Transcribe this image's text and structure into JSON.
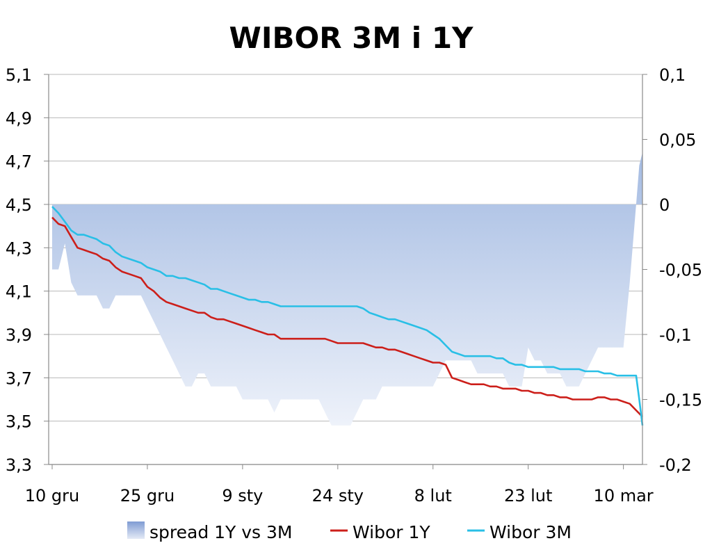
{
  "chart_data": {
    "type": "line",
    "title": "WIBOR 3M i 1Y",
    "x_labels": [
      "10 gru",
      "25 gru",
      "9 sty",
      "24 sty",
      "8 lut",
      "23 lut",
      "10 mar"
    ],
    "x_tick_days": [
      0,
      15,
      30,
      45,
      60,
      75,
      90
    ],
    "x_range_days": [
      0,
      93
    ],
    "y_left": {
      "min": 3.3,
      "max": 5.1,
      "ticks": [
        "5,1",
        "4,9",
        "4,7",
        "4,5",
        "4,3",
        "4,1",
        "3,9",
        "3,7",
        "3,5",
        "3,3"
      ]
    },
    "y_right": {
      "min": -0.2,
      "max": 0.1,
      "ticks": [
        "0,1",
        "0,05",
        "0",
        "-0,05",
        "-0,1",
        "-0,15",
        "-0,2"
      ]
    },
    "gridlines": "horizontal",
    "legend_position": "bottom",
    "series": [
      {
        "name": "spread 1Y vs 3M",
        "style": "area",
        "axis": "right",
        "color": "#8eaadb",
        "x": [
          0,
          1,
          2,
          3,
          4,
          5,
          6,
          7,
          8,
          9,
          10,
          11,
          12,
          13,
          14,
          15,
          16,
          17,
          18,
          19,
          20,
          21,
          22,
          23,
          24,
          25,
          26,
          27,
          28,
          29,
          30,
          31,
          32,
          33,
          34,
          35,
          36,
          37,
          38,
          39,
          40,
          41,
          42,
          43,
          44,
          45,
          46,
          47,
          48,
          49,
          50,
          51,
          52,
          53,
          54,
          55,
          56,
          57,
          58,
          59,
          60,
          61,
          62,
          63,
          64,
          65,
          66,
          67,
          68,
          69,
          70,
          71,
          72,
          73,
          74,
          75,
          76,
          77,
          78,
          79,
          80,
          81,
          82,
          83,
          84,
          85,
          86,
          87,
          88,
          89,
          90,
          91,
          92,
          92.5,
          93
        ],
        "values": [
          -0.05,
          -0.05,
          -0.03,
          -0.06,
          -0.07,
          -0.07,
          -0.07,
          -0.07,
          -0.08,
          -0.08,
          -0.07,
          -0.07,
          -0.07,
          -0.07,
          -0.07,
          -0.08,
          -0.09,
          -0.1,
          -0.11,
          -0.12,
          -0.13,
          -0.14,
          -0.14,
          -0.13,
          -0.13,
          -0.14,
          -0.14,
          -0.14,
          -0.14,
          -0.14,
          -0.15,
          -0.15,
          -0.15,
          -0.15,
          -0.15,
          -0.16,
          -0.15,
          -0.15,
          -0.15,
          -0.15,
          -0.15,
          -0.15,
          -0.15,
          -0.16,
          -0.17,
          -0.17,
          -0.17,
          -0.17,
          -0.16,
          -0.15,
          -0.15,
          -0.15,
          -0.14,
          -0.14,
          -0.14,
          -0.14,
          -0.14,
          -0.14,
          -0.14,
          -0.14,
          -0.14,
          -0.13,
          -0.12,
          -0.12,
          -0.12,
          -0.12,
          -0.12,
          -0.13,
          -0.13,
          -0.13,
          -0.13,
          -0.13,
          -0.14,
          -0.14,
          -0.14,
          -0.11,
          -0.12,
          -0.12,
          -0.13,
          -0.13,
          -0.13,
          -0.14,
          -0.14,
          -0.14,
          -0.13,
          -0.12,
          -0.11,
          -0.11,
          -0.11,
          -0.11,
          -0.11,
          -0.06,
          0.0,
          0.03,
          0.04
        ]
      },
      {
        "name": "Wibor 1Y",
        "style": "line",
        "axis": "left",
        "color": "#cc1f1a",
        "x": [
          0,
          1,
          2,
          3,
          4,
          5,
          6,
          7,
          8,
          9,
          10,
          11,
          12,
          13,
          14,
          15,
          16,
          17,
          18,
          19,
          20,
          21,
          22,
          23,
          24,
          25,
          26,
          27,
          28,
          29,
          30,
          31,
          32,
          33,
          34,
          35,
          36,
          37,
          38,
          39,
          40,
          41,
          42,
          43,
          44,
          45,
          46,
          47,
          48,
          49,
          50,
          51,
          52,
          53,
          54,
          55,
          56,
          57,
          58,
          59,
          60,
          61,
          62,
          63,
          64,
          65,
          66,
          67,
          68,
          69,
          70,
          71,
          72,
          73,
          74,
          75,
          76,
          77,
          78,
          79,
          80,
          81,
          82,
          83,
          84,
          85,
          86,
          87,
          88,
          89,
          90,
          91,
          92,
          93
        ],
        "values": [
          4.44,
          4.41,
          4.4,
          4.35,
          4.3,
          4.29,
          4.28,
          4.27,
          4.25,
          4.24,
          4.21,
          4.19,
          4.18,
          4.17,
          4.16,
          4.12,
          4.1,
          4.07,
          4.05,
          4.04,
          4.03,
          4.02,
          4.01,
          4.0,
          4.0,
          3.98,
          3.97,
          3.97,
          3.96,
          3.95,
          3.94,
          3.93,
          3.92,
          3.91,
          3.9,
          3.9,
          3.88,
          3.88,
          3.88,
          3.88,
          3.88,
          3.88,
          3.88,
          3.88,
          3.87,
          3.86,
          3.86,
          3.86,
          3.86,
          3.86,
          3.85,
          3.84,
          3.84,
          3.83,
          3.83,
          3.82,
          3.81,
          3.8,
          3.79,
          3.78,
          3.77,
          3.77,
          3.76,
          3.7,
          3.69,
          3.68,
          3.67,
          3.67,
          3.67,
          3.66,
          3.66,
          3.65,
          3.65,
          3.65,
          3.64,
          3.64,
          3.63,
          3.63,
          3.62,
          3.62,
          3.61,
          3.61,
          3.6,
          3.6,
          3.6,
          3.6,
          3.61,
          3.61,
          3.6,
          3.6,
          3.59,
          3.58,
          3.55,
          3.52
        ]
      },
      {
        "name": "Wibor 3M",
        "style": "line",
        "axis": "left",
        "color": "#29bfe6",
        "x": [
          0,
          1,
          2,
          3,
          4,
          5,
          6,
          7,
          8,
          9,
          10,
          11,
          12,
          13,
          14,
          15,
          16,
          17,
          18,
          19,
          20,
          21,
          22,
          23,
          24,
          25,
          26,
          27,
          28,
          29,
          30,
          31,
          32,
          33,
          34,
          35,
          36,
          37,
          38,
          39,
          40,
          41,
          42,
          43,
          44,
          45,
          46,
          47,
          48,
          49,
          50,
          51,
          52,
          53,
          54,
          55,
          56,
          57,
          58,
          59,
          60,
          61,
          62,
          63,
          64,
          65,
          66,
          67,
          68,
          69,
          70,
          71,
          72,
          73,
          74,
          75,
          76,
          77,
          78,
          79,
          80,
          81,
          82,
          83,
          84,
          85,
          86,
          87,
          88,
          89,
          90,
          91,
          92,
          92.5,
          93
        ],
        "values": [
          4.49,
          4.46,
          4.42,
          4.38,
          4.36,
          4.36,
          4.35,
          4.34,
          4.32,
          4.31,
          4.28,
          4.26,
          4.25,
          4.24,
          4.23,
          4.21,
          4.2,
          4.19,
          4.17,
          4.17,
          4.16,
          4.16,
          4.15,
          4.14,
          4.13,
          4.11,
          4.11,
          4.1,
          4.09,
          4.08,
          4.07,
          4.06,
          4.06,
          4.05,
          4.05,
          4.04,
          4.03,
          4.03,
          4.03,
          4.03,
          4.03,
          4.03,
          4.03,
          4.03,
          4.03,
          4.03,
          4.03,
          4.03,
          4.03,
          4.02,
          4.0,
          3.99,
          3.98,
          3.97,
          3.97,
          3.96,
          3.95,
          3.94,
          3.93,
          3.92,
          3.9,
          3.88,
          3.85,
          3.82,
          3.81,
          3.8,
          3.8,
          3.8,
          3.8,
          3.8,
          3.79,
          3.79,
          3.77,
          3.76,
          3.76,
          3.75,
          3.75,
          3.75,
          3.75,
          3.75,
          3.74,
          3.74,
          3.74,
          3.74,
          3.73,
          3.73,
          3.73,
          3.72,
          3.72,
          3.71,
          3.71,
          3.71,
          3.71,
          3.6,
          3.48
        ]
      }
    ]
  }
}
